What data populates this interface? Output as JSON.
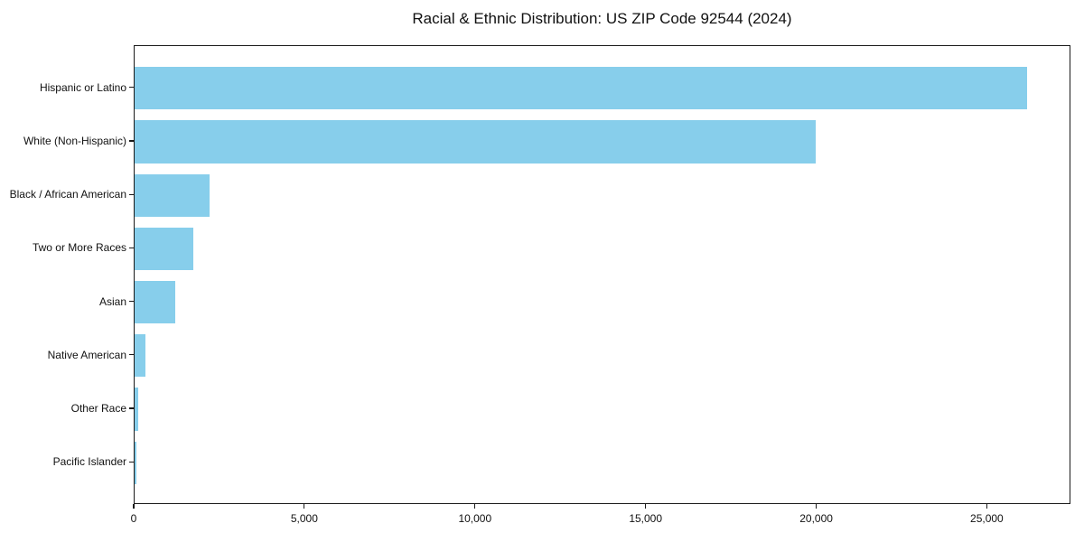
{
  "chart_data": {
    "type": "bar",
    "orientation": "horizontal",
    "title": "Racial & Ethnic Distribution: US ZIP Code 92544 (2024)",
    "categories": [
      "Hispanic or Latino",
      "White (Non-Hispanic)",
      "Black / African American",
      "Two or More Races",
      "Asian",
      "Native American",
      "Other Race",
      "Pacific Islander"
    ],
    "values": [
      26150,
      19950,
      2200,
      1720,
      1190,
      310,
      100,
      50
    ],
    "xlabel": "",
    "ylabel": "",
    "xlim": [
      0,
      27450
    ],
    "x_ticks": [
      {
        "value": 0,
        "label": "0"
      },
      {
        "value": 5000,
        "label": "5,000"
      },
      {
        "value": 10000,
        "label": "10,000"
      },
      {
        "value": 15000,
        "label": "15,000"
      },
      {
        "value": 20000,
        "label": "20,000"
      },
      {
        "value": 25000,
        "label": "25,000"
      }
    ],
    "grid": false,
    "legend_position": "none",
    "bar_color": "#87CEEB",
    "axis_color": "#1a1a1a",
    "text_color": "#111111",
    "background_color": "#ffffff"
  }
}
